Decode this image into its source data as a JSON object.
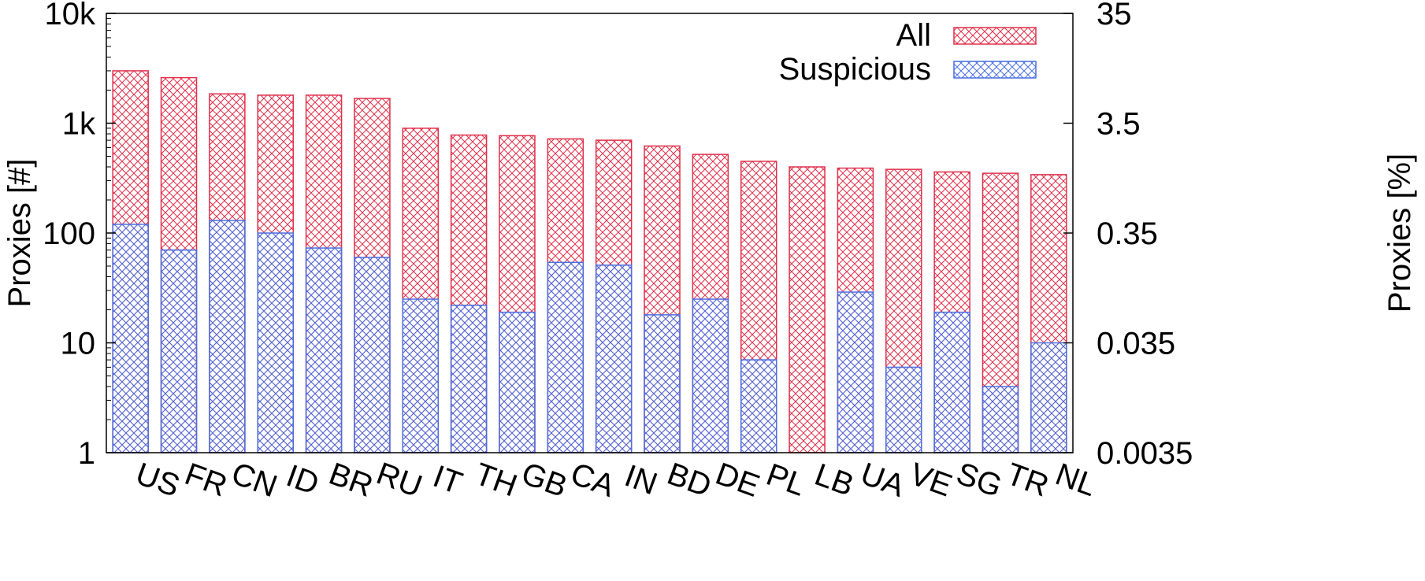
{
  "chart_data": {
    "type": "bar",
    "title": "",
    "ylabel": "Proxies [#]",
    "y2label": "Proxies [%]",
    "yscale": "log",
    "ylim": [
      1,
      10000
    ],
    "y2lim": [
      0.0035,
      35
    ],
    "yticks": [
      {
        "value": 1,
        "label": "1"
      },
      {
        "value": 10,
        "label": "10"
      },
      {
        "value": 100,
        "label": "100"
      },
      {
        "value": 1000,
        "label": "1k"
      },
      {
        "value": 10000,
        "label": "10k"
      }
    ],
    "y2ticks": [
      {
        "value": 0.0035,
        "label": "0.0035"
      },
      {
        "value": 0.035,
        "label": "0.035"
      },
      {
        "value": 0.35,
        "label": "0.35"
      },
      {
        "value": 3.5,
        "label": "3.5"
      },
      {
        "value": 35,
        "label": "35"
      }
    ],
    "legend_position": "top-right",
    "grid": false,
    "categories": [
      "US",
      "FR",
      "CN",
      "ID",
      "BR",
      "RU",
      "IT",
      "TH",
      "GB",
      "CA",
      "IN",
      "BD",
      "DE",
      "PL",
      "LB",
      "UA",
      "VE",
      "SG",
      "TR",
      "NL"
    ],
    "series": [
      {
        "name": "All",
        "color": "#e0304a",
        "values": [
          3000,
          2600,
          1850,
          1800,
          1800,
          1680,
          900,
          780,
          770,
          720,
          700,
          620,
          520,
          450,
          400,
          390,
          380,
          360,
          350,
          340
        ]
      },
      {
        "name": "Suspicious",
        "color": "#4a6fe0",
        "values": [
          120,
          70,
          130,
          100,
          73,
          60,
          25,
          22,
          19,
          54,
          51,
          18,
          25,
          7,
          1,
          29,
          6,
          19,
          4,
          10
        ]
      }
    ]
  }
}
